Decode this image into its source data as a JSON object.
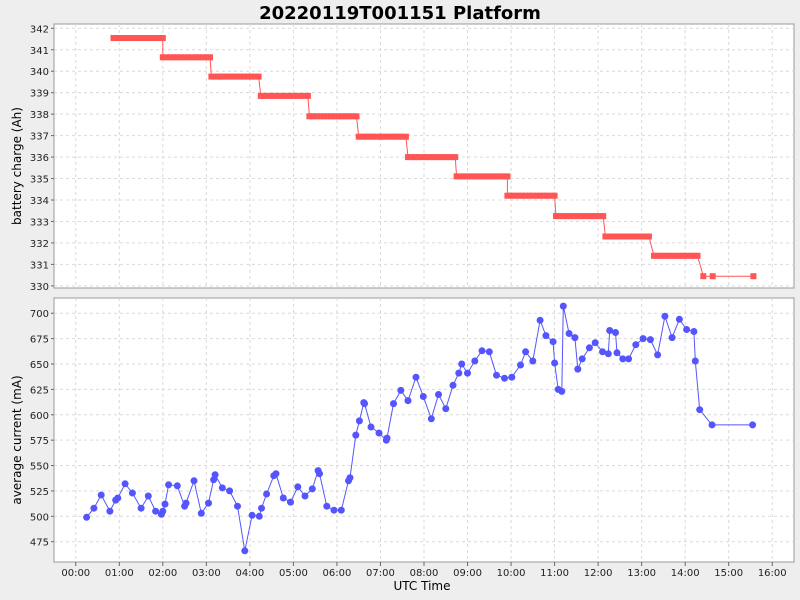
{
  "title": "20220119T001151 Platform",
  "x_axis": {
    "label": "UTC Time",
    "ticks": [
      "00:00",
      "01:00",
      "02:00",
      "03:00",
      "04:00",
      "05:00",
      "06:00",
      "07:00",
      "08:00",
      "09:00",
      "10:00",
      "11:00",
      "12:00",
      "13:00",
      "14:00",
      "15:00",
      "16:00"
    ]
  },
  "chart_data": [
    {
      "type": "line",
      "ylabel": "battery charge (Ah)",
      "xlabel": "",
      "xlim": [
        "-00:30",
        "16:30"
      ],
      "ylim": [
        329.9,
        342.2
      ],
      "yticks": [
        330,
        331,
        332,
        333,
        334,
        335,
        336,
        337,
        338,
        339,
        340,
        341,
        342
      ],
      "grid": true,
      "color": "#ff5555",
      "series": [
        {
          "x": [
            "00:52",
            "00:58",
            "01:03",
            "01:08",
            "01:13",
            "01:18",
            "01:23",
            "01:28",
            "01:33",
            "01:38",
            "01:43",
            "01:48",
            "01:53",
            "01:58",
            "02:00",
            "02:00",
            "02:05",
            "02:10",
            "02:15",
            "02:20",
            "02:25",
            "02:30",
            "02:35",
            "02:40",
            "02:45",
            "02:50",
            "02:55",
            "03:00",
            "03:05",
            "03:07",
            "03:12",
            "03:17",
            "03:22",
            "03:27",
            "03:32",
            "03:37",
            "03:42",
            "03:47",
            "03:52",
            "03:57",
            "04:02",
            "04:07",
            "04:12",
            "04:15",
            "04:20",
            "04:25",
            "04:30",
            "04:35",
            "04:40",
            "04:45",
            "04:50",
            "04:55",
            "05:00",
            "05:05",
            "05:10",
            "05:15",
            "05:20",
            "05:22",
            "05:27",
            "05:32",
            "05:37",
            "05:42",
            "05:47",
            "05:52",
            "05:57",
            "06:02",
            "06:07",
            "06:12",
            "06:17",
            "06:22",
            "06:27",
            "06:30",
            "06:35",
            "06:40",
            "06:45",
            "06:50",
            "06:55",
            "07:00",
            "07:05",
            "07:10",
            "07:15",
            "07:20",
            "07:25",
            "07:30",
            "07:35",
            "07:38",
            "07:43",
            "07:48",
            "07:53",
            "07:58",
            "08:03",
            "08:08",
            "08:13",
            "08:18",
            "08:23",
            "08:28",
            "08:33",
            "08:38",
            "08:43",
            "08:45",
            "08:50",
            "08:55",
            "09:00",
            "09:05",
            "09:10",
            "09:15",
            "09:20",
            "09:25",
            "09:30",
            "09:35",
            "09:40",
            "09:45",
            "09:50",
            "09:55",
            "09:55",
            "10:00",
            "10:05",
            "10:10",
            "10:15",
            "10:20",
            "10:25",
            "10:30",
            "10:35",
            "10:40",
            "10:45",
            "10:50",
            "10:55",
            "11:00",
            "11:02",
            "11:07",
            "11:12",
            "11:17",
            "11:22",
            "11:27",
            "11:32",
            "11:37",
            "11:42",
            "11:47",
            "11:52",
            "11:57",
            "12:02",
            "12:07",
            "12:10",
            "12:15",
            "12:20",
            "12:25",
            "12:30",
            "12:35",
            "12:40",
            "12:45",
            "12:50",
            "12:55",
            "13:00",
            "13:05",
            "13:10",
            "13:17",
            "13:22",
            "13:27",
            "13:32",
            "13:37",
            "13:42",
            "13:47",
            "13:52",
            "13:57",
            "14:02",
            "14:07",
            "14:12",
            "14:17",
            "14:25",
            "14:38",
            "15:34"
          ],
          "y": [
            341.55,
            341.55,
            341.55,
            341.55,
            341.55,
            341.55,
            341.55,
            341.55,
            341.55,
            341.55,
            341.55,
            341.55,
            341.55,
            341.55,
            341.55,
            340.65,
            340.65,
            340.65,
            340.65,
            340.65,
            340.65,
            340.65,
            340.65,
            340.65,
            340.65,
            340.65,
            340.65,
            340.65,
            340.65,
            339.75,
            339.75,
            339.75,
            339.75,
            339.75,
            339.75,
            339.75,
            339.75,
            339.75,
            339.75,
            339.75,
            339.75,
            339.75,
            339.75,
            338.85,
            338.85,
            338.85,
            338.85,
            338.85,
            338.85,
            338.85,
            338.85,
            338.85,
            338.85,
            338.85,
            338.85,
            338.85,
            338.85,
            337.9,
            337.9,
            337.9,
            337.9,
            337.9,
            337.9,
            337.9,
            337.9,
            337.9,
            337.9,
            337.9,
            337.9,
            337.9,
            337.9,
            336.95,
            336.95,
            336.95,
            336.95,
            336.95,
            336.95,
            336.95,
            336.95,
            336.95,
            336.95,
            336.95,
            336.95,
            336.95,
            336.95,
            336.0,
            336.0,
            336.0,
            336.0,
            336.0,
            336.0,
            336.0,
            336.0,
            336.0,
            336.0,
            336.0,
            336.0,
            336.0,
            336.0,
            335.1,
            335.1,
            335.1,
            335.1,
            335.1,
            335.1,
            335.1,
            335.1,
            335.1,
            335.1,
            335.1,
            335.1,
            335.1,
            335.1,
            335.1,
            334.2,
            334.2,
            334.2,
            334.2,
            334.2,
            334.2,
            334.2,
            334.2,
            334.2,
            334.2,
            334.2,
            334.2,
            334.2,
            334.2,
            333.25,
            333.25,
            333.25,
            333.25,
            333.25,
            333.25,
            333.25,
            333.25,
            333.25,
            333.25,
            333.25,
            333.25,
            333.25,
            333.25,
            332.3,
            332.3,
            332.3,
            332.3,
            332.3,
            332.3,
            332.3,
            332.3,
            332.3,
            332.3,
            332.3,
            332.3,
            332.3,
            331.4,
            331.4,
            331.4,
            331.4,
            331.4,
            331.4,
            331.4,
            331.4,
            331.4,
            331.4,
            331.4,
            331.4,
            331.4,
            330.45,
            330.45,
            330.45
          ]
        }
      ]
    },
    {
      "type": "line",
      "ylabel": "average current (mA)",
      "xlabel": "UTC Time",
      "xlim": [
        "-00:30",
        "16:30"
      ],
      "ylim": [
        455,
        715
      ],
      "yticks": [
        475,
        500,
        525,
        550,
        575,
        600,
        625,
        650,
        675,
        700
      ],
      "grid": true,
      "color": "#5555ff",
      "series": [
        {
          "x": [
            "00:15",
            "00:25",
            "00:35",
            "00:47",
            "00:55",
            "00:58",
            "01:08",
            "01:18",
            "01:30",
            "01:40",
            "01:50",
            "01:58",
            "02:00",
            "02:03",
            "02:08",
            "02:20",
            "02:30",
            "02:32",
            "02:43",
            "02:53",
            "03:03",
            "03:10",
            "03:12",
            "03:22",
            "03:32",
            "03:43",
            "03:53",
            "04:03",
            "04:13",
            "04:16",
            "04:23",
            "04:33",
            "04:36",
            "04:46",
            "04:56",
            "05:06",
            "05:16",
            "05:26",
            "05:34",
            "05:36",
            "05:46",
            "05:56",
            "06:06",
            "06:16",
            "06:18",
            "06:26",
            "06:31",
            "06:37",
            "06:38",
            "06:47",
            "06:58",
            "07:08",
            "07:09",
            "07:18",
            "07:28",
            "07:38",
            "07:49",
            "07:59",
            "08:10",
            "08:20",
            "08:30",
            "08:40",
            "08:48",
            "08:52",
            "09:00",
            "09:10",
            "09:20",
            "09:30",
            "09:40",
            "09:51",
            "10:01",
            "10:13",
            "10:20",
            "10:30",
            "10:40",
            "10:48",
            "10:58",
            "11:00",
            "11:05",
            "11:10",
            "11:12",
            "11:20",
            "11:28",
            "11:32",
            "11:38",
            "11:48",
            "11:56",
            "12:06",
            "12:14",
            "12:16",
            "12:24",
            "12:26",
            "12:34",
            "12:42",
            "12:52",
            "13:02",
            "13:12",
            "13:22",
            "13:32",
            "13:42",
            "13:52",
            "14:02",
            "14:12",
            "14:14",
            "14:20",
            "14:37",
            "15:33"
          ],
          "y": [
            499,
            508,
            521,
            505,
            516,
            518,
            532,
            523,
            508,
            520,
            505,
            502,
            505,
            512,
            531,
            530,
            510,
            513,
            535,
            503,
            513,
            536,
            541,
            528,
            525,
            510,
            466,
            501,
            500,
            508,
            522,
            540,
            542,
            518,
            514,
            529,
            520,
            527,
            545,
            542,
            510,
            506,
            506,
            535,
            538,
            580,
            594,
            612,
            611,
            588,
            582,
            575,
            577,
            611,
            624,
            614,
            637,
            618,
            596,
            620,
            606,
            629,
            641,
            650,
            641,
            653,
            663,
            662,
            639,
            636,
            637,
            649,
            662,
            653,
            693,
            678,
            672,
            651,
            625,
            623,
            707,
            680,
            676,
            645,
            655,
            666,
            671,
            662,
            660,
            683,
            681,
            661,
            655,
            655,
            669,
            675,
            674,
            659,
            697,
            676,
            694,
            684,
            682,
            653,
            605,
            590,
            590
          ]
        }
      ]
    }
  ]
}
